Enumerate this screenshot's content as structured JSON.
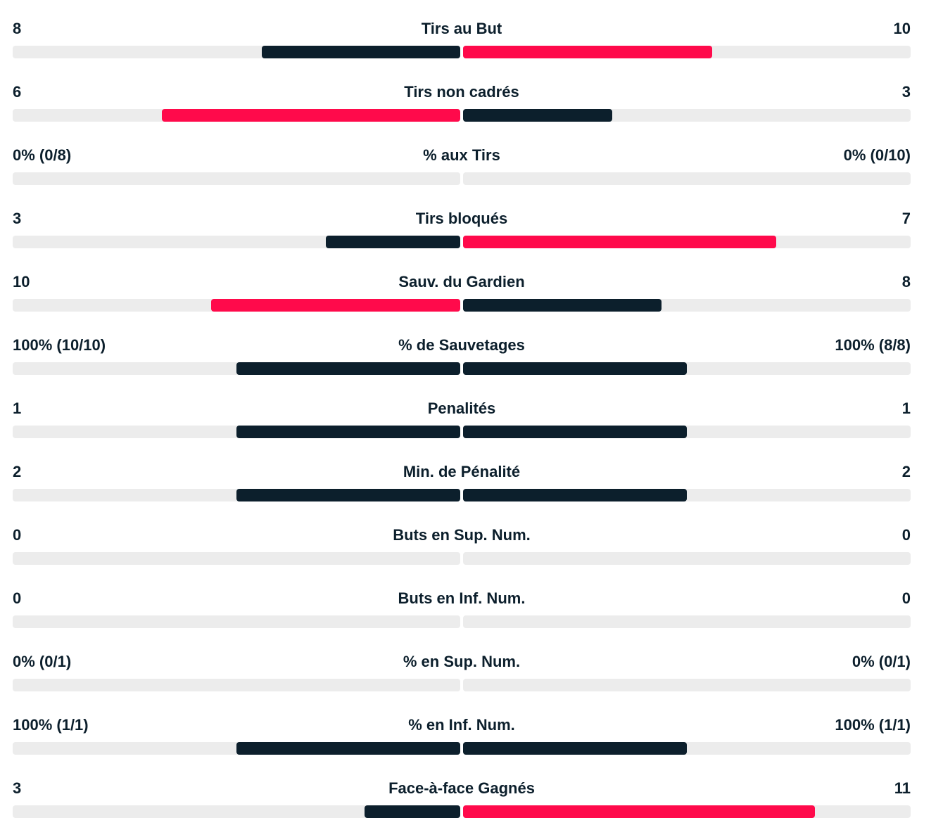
{
  "colors": {
    "leader": "#ff0a4b",
    "trailer": "#0c1f2c",
    "track": "#ececec"
  },
  "stats": [
    {
      "label": "Tirs au But",
      "home": "8",
      "away": "10",
      "home_fraction": 0.444,
      "away_fraction": 0.556
    },
    {
      "label": "Tirs non cadrés",
      "home": "6",
      "away": "3",
      "home_fraction": 0.667,
      "away_fraction": 0.333
    },
    {
      "label": "% aux Tirs",
      "home": "0% (0/8)",
      "away": "0% (0/10)",
      "home_fraction": 0,
      "away_fraction": 0
    },
    {
      "label": "Tirs bloqués",
      "home": "3",
      "away": "7",
      "home_fraction": 0.3,
      "away_fraction": 0.7
    },
    {
      "label": "Sauv. du Gardien",
      "home": "10",
      "away": "8",
      "home_fraction": 0.556,
      "away_fraction": 0.444
    },
    {
      "label": "% de Sauvetages",
      "home": "100% (10/10)",
      "away": "100% (8/8)",
      "home_fraction": 0.5,
      "away_fraction": 0.5
    },
    {
      "label": "Penalités",
      "home": "1",
      "away": "1",
      "home_fraction": 0.5,
      "away_fraction": 0.5
    },
    {
      "label": "Min. de Pénalité",
      "home": "2",
      "away": "2",
      "home_fraction": 0.5,
      "away_fraction": 0.5
    },
    {
      "label": "Buts en Sup. Num.",
      "home": "0",
      "away": "0",
      "home_fraction": 0,
      "away_fraction": 0
    },
    {
      "label": "Buts en Inf. Num.",
      "home": "0",
      "away": "0",
      "home_fraction": 0,
      "away_fraction": 0
    },
    {
      "label": "% en Sup. Num.",
      "home": "0% (0/1)",
      "away": "0% (0/1)",
      "home_fraction": 0,
      "away_fraction": 0
    },
    {
      "label": "% en Inf. Num.",
      "home": "100% (1/1)",
      "away": "100% (1/1)",
      "home_fraction": 0.5,
      "away_fraction": 0.5
    },
    {
      "label": "Face-à-face Gagnés",
      "home": "3",
      "away": "11",
      "home_fraction": 0.214,
      "away_fraction": 0.786
    }
  ]
}
